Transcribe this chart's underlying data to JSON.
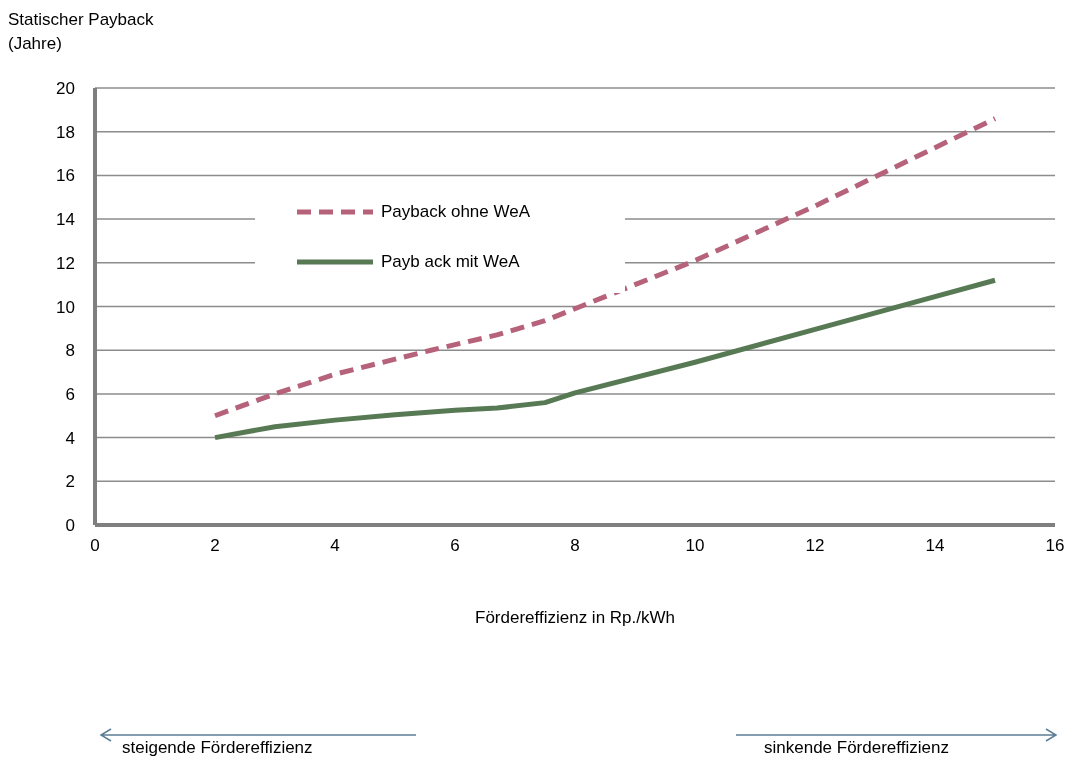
{
  "chart_data": {
    "type": "line",
    "ylabel": "Statischer Payback\n(Jahre)",
    "xlabel": "Fördereffizienz in Rp./kWh",
    "xlim": [
      0,
      16
    ],
    "xticks": [
      0,
      2,
      4,
      6,
      8,
      10,
      12,
      14,
      16
    ],
    "ylim": [
      0,
      20
    ],
    "yticks": [
      0,
      2,
      4,
      6,
      8,
      10,
      12,
      14,
      16,
      18,
      20
    ],
    "grid": "y",
    "legend": "top left",
    "series": [
      {
        "name": "Payback ohne WeA",
        "color": "#b5627a",
        "line_style": "dashed",
        "x": [
          2,
          3,
          4,
          5.6,
          6.7,
          7.5,
          10,
          12,
          15
        ],
        "values": [
          5,
          6,
          6.9,
          8,
          8.7,
          9.35,
          12.1,
          14.6,
          18.6
        ]
      },
      {
        "name": "Payb ack mit WeA",
        "color": "#577a54",
        "line_style": "solid",
        "x": [
          2,
          3,
          4,
          5,
          6,
          6.7,
          7.5,
          8,
          10,
          12,
          14,
          15
        ],
        "values": [
          4,
          4.5,
          4.8,
          5.05,
          5.25,
          5.35,
          5.6,
          6.05,
          7.45,
          8.95,
          10.45,
          11.2
        ]
      }
    ],
    "annotations": [
      "steigende Fördereffizienz",
      "sinkende Fördereffizienz"
    ]
  }
}
